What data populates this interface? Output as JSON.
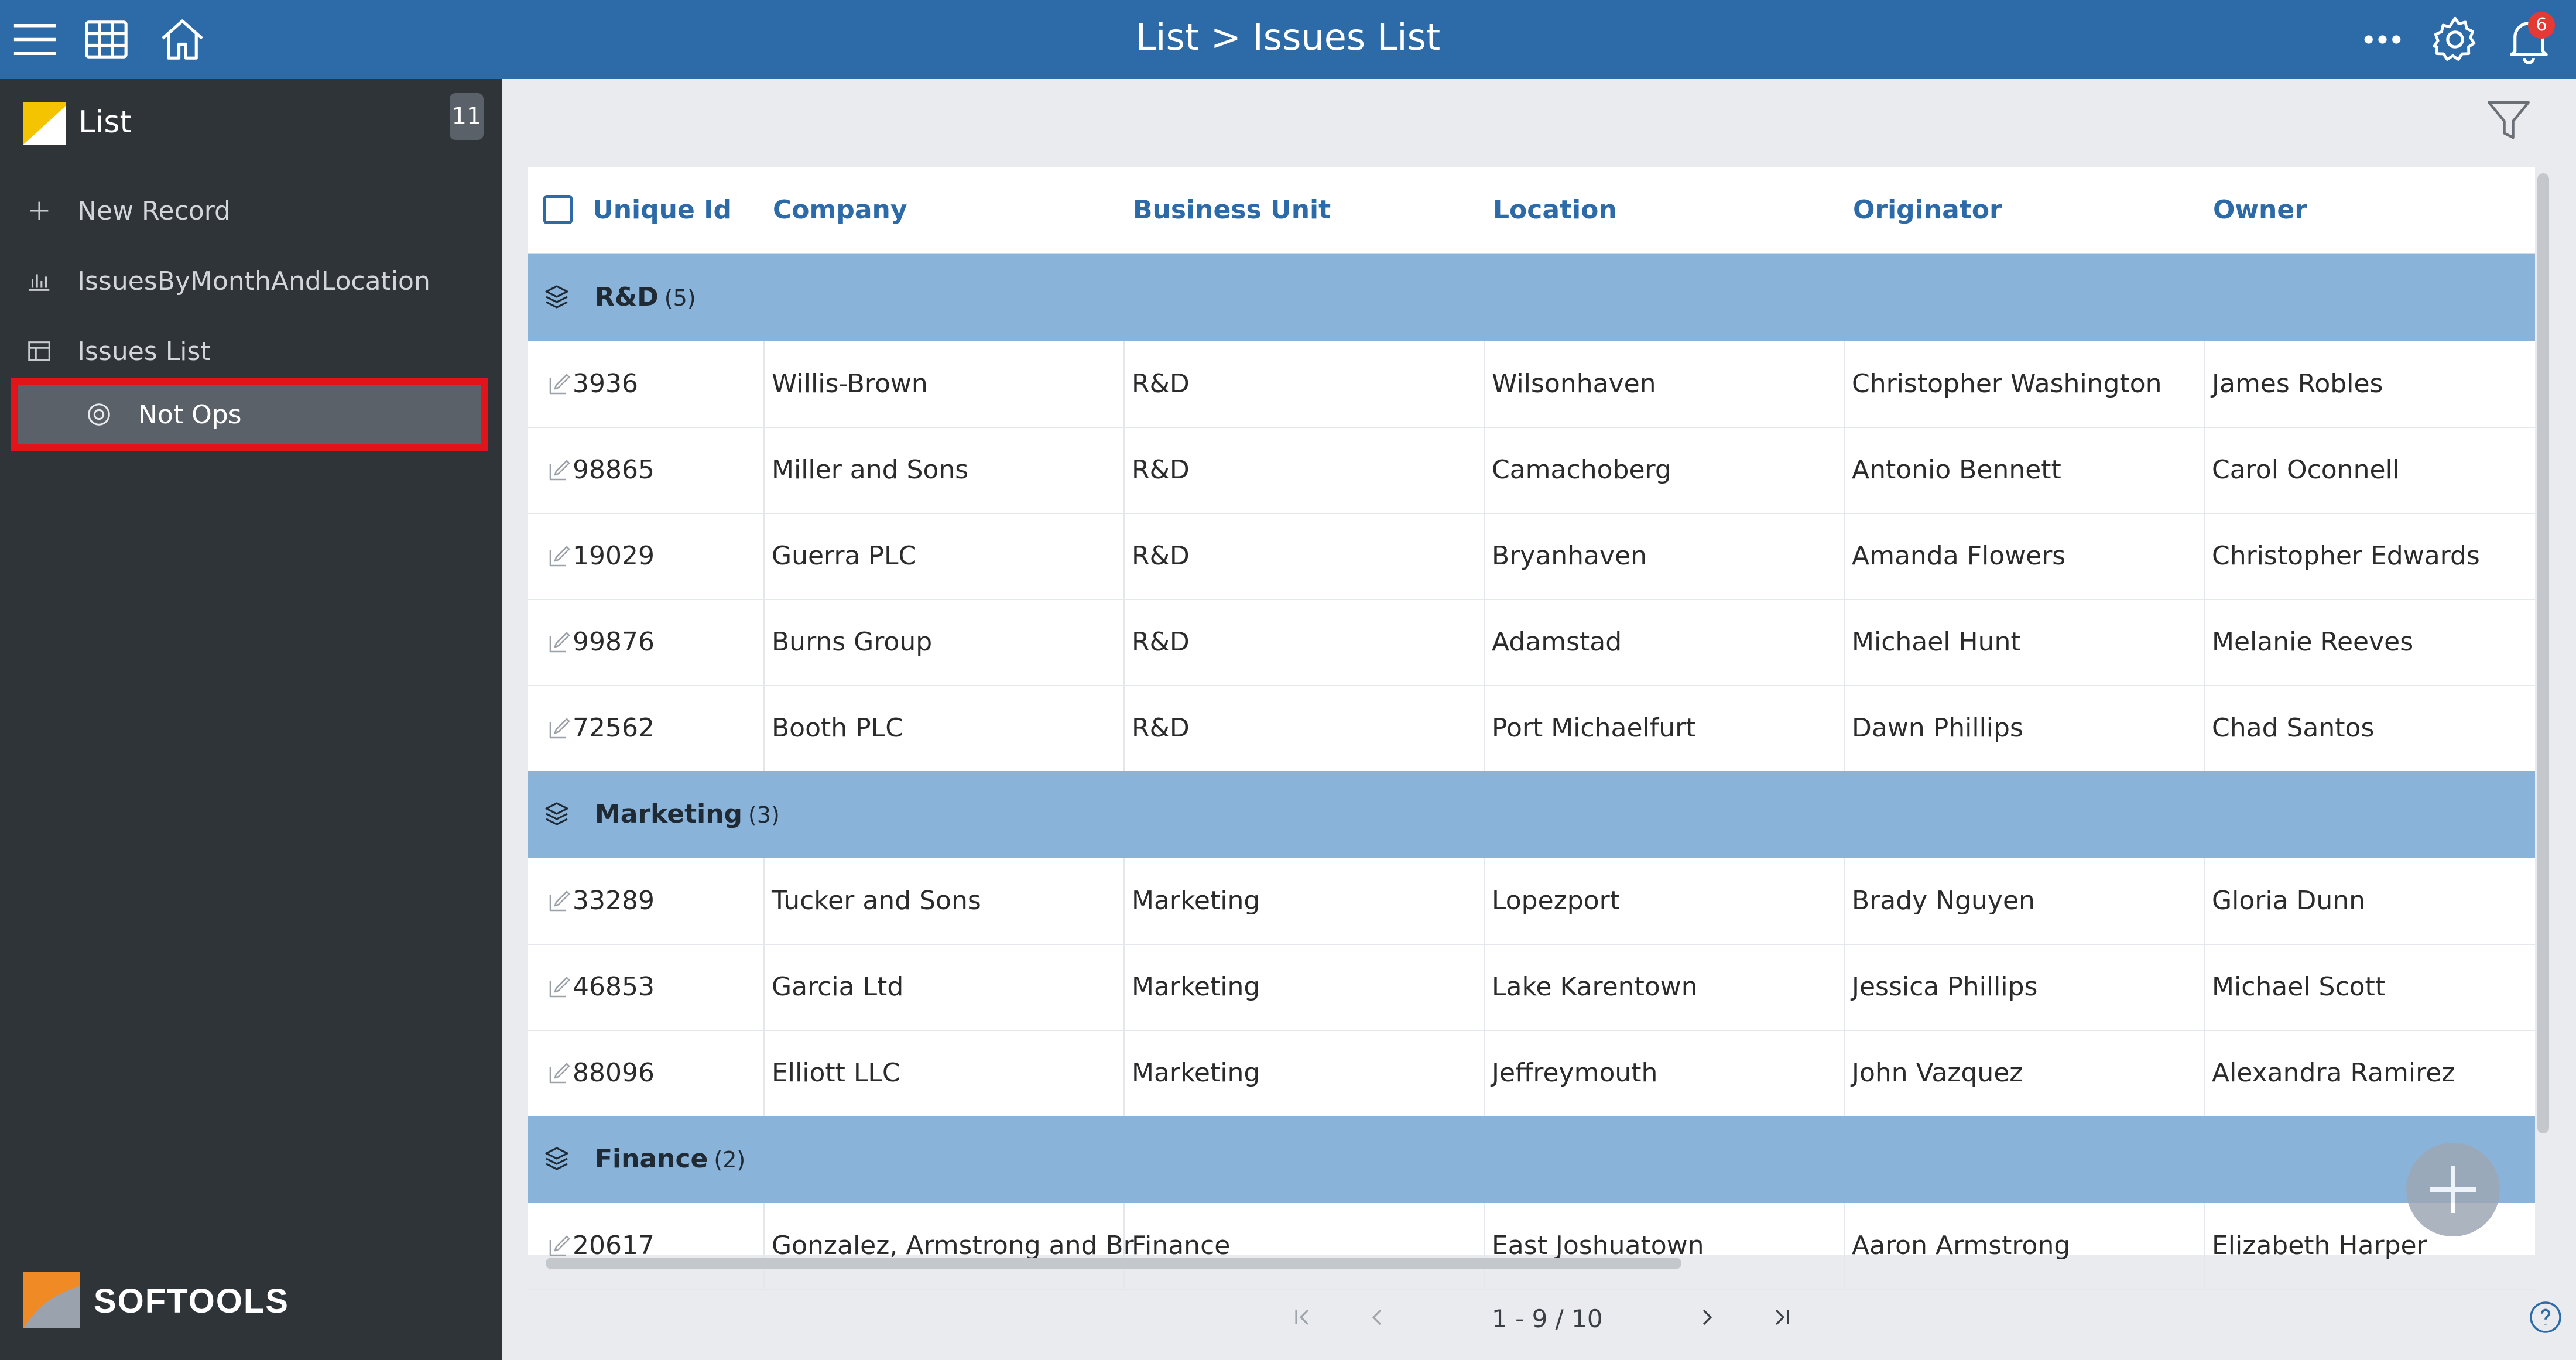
{
  "topbar": {
    "title": "List > Issues List",
    "notification_count": "6",
    "icons": [
      "hamburger-menu-icon",
      "grid-icon",
      "home-icon",
      "more-icon",
      "gear-icon",
      "bell-icon"
    ]
  },
  "sidebar": {
    "title": "List",
    "count": "11",
    "items": [
      {
        "label": "New Record",
        "icon": "plus-icon"
      },
      {
        "label": "IssuesByMonthAndLocation",
        "icon": "bar-chart-icon"
      },
      {
        "label": "Issues List",
        "icon": "table-icon"
      },
      {
        "label": "Not Ops",
        "icon": "filter-circle-icon"
      }
    ],
    "brand": "SOFTOOLS"
  },
  "table": {
    "columns": [
      "Unique Id",
      "Company",
      "Business Unit",
      "Location",
      "Originator",
      "Owner"
    ],
    "groups": [
      {
        "name": "R&D",
        "count": "(5)",
        "rows": [
          [
            "3936",
            "Willis-Brown",
            "R&D",
            "Wilsonhaven",
            "Christopher Washington",
            "James Robles"
          ],
          [
            "98865",
            "Miller and Sons",
            "R&D",
            "Camachoberg",
            "Antonio Bennett",
            "Carol Oconnell"
          ],
          [
            "19029",
            "Guerra PLC",
            "R&D",
            "Bryanhaven",
            "Amanda Flowers",
            "Christopher Edwards"
          ],
          [
            "99876",
            "Burns Group",
            "R&D",
            "Adamstad",
            "Michael Hunt",
            "Melanie Reeves"
          ],
          [
            "72562",
            "Booth PLC",
            "R&D",
            "Port Michaelfurt",
            "Dawn Phillips",
            "Chad Santos"
          ]
        ]
      },
      {
        "name": "Marketing",
        "count": "(3)",
        "rows": [
          [
            "33289",
            "Tucker and Sons",
            "Marketing",
            "Lopezport",
            "Brady Nguyen",
            "Gloria Dunn"
          ],
          [
            "46853",
            "Garcia Ltd",
            "Marketing",
            "Lake Karentown",
            "Jessica Phillips",
            "Michael Scott"
          ],
          [
            "88096",
            "Elliott LLC",
            "Marketing",
            "Jeffreymouth",
            "John Vazquez",
            "Alexandra Ramirez"
          ]
        ]
      },
      {
        "name": "Finance",
        "count": "(2)",
        "rows": [
          [
            "20617",
            "Gonzalez, Armstrong and Br",
            "Finance",
            "East Joshuatown",
            "Aaron Armstrong",
            "Elizabeth Harper"
          ]
        ]
      }
    ]
  },
  "pager": {
    "text": "1 - 9 / 10"
  },
  "colors": {
    "topbar": "#2c6aa8",
    "sidebar": "#2f3439",
    "group_header": "#8ab3d9",
    "active_highlight": "#e0141a"
  }
}
